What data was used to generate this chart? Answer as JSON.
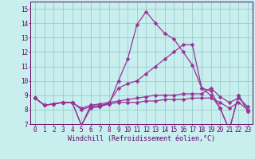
{
  "xlabel": "Windchill (Refroidissement éolien,°C)",
  "xlim": [
    -0.5,
    23.5
  ],
  "ylim": [
    7,
    15.5
  ],
  "xticks": [
    0,
    1,
    2,
    3,
    4,
    5,
    6,
    7,
    8,
    9,
    10,
    11,
    12,
    13,
    14,
    15,
    16,
    17,
    18,
    19,
    20,
    21,
    22,
    23
  ],
  "yticks": [
    7,
    8,
    9,
    10,
    11,
    12,
    13,
    14,
    15
  ],
  "background_color": "#c8eeee",
  "grid_color": "#99cccc",
  "line_color": "#993399",
  "lines": [
    [
      8.8,
      8.3,
      8.4,
      8.5,
      8.5,
      6.9,
      8.3,
      8.2,
      8.4,
      10.0,
      11.5,
      13.9,
      14.8,
      14.0,
      13.3,
      12.9,
      12.0,
      11.1,
      9.5,
      9.0,
      8.1,
      6.6,
      9.0,
      7.9
    ],
    [
      8.8,
      8.3,
      8.4,
      8.5,
      8.5,
      6.9,
      8.1,
      8.2,
      8.5,
      9.5,
      9.8,
      10.0,
      10.5,
      11.0,
      11.5,
      12.0,
      12.5,
      12.5,
      9.5,
      9.3,
      8.1,
      6.6,
      9.0,
      7.9
    ],
    [
      8.8,
      8.3,
      8.4,
      8.5,
      8.5,
      8.1,
      8.3,
      8.4,
      8.5,
      8.6,
      8.7,
      8.8,
      8.9,
      9.0,
      9.0,
      9.0,
      9.1,
      9.1,
      9.1,
      9.5,
      8.9,
      8.5,
      8.8,
      8.2
    ],
    [
      8.8,
      8.3,
      8.4,
      8.5,
      8.5,
      8.0,
      8.2,
      8.3,
      8.4,
      8.5,
      8.5,
      8.5,
      8.6,
      8.6,
      8.7,
      8.7,
      8.7,
      8.8,
      8.8,
      8.8,
      8.5,
      8.1,
      8.5,
      8.0
    ]
  ],
  "marker": "D",
  "markersize": 2.5,
  "linewidth": 0.9,
  "font_color": "#660066",
  "tick_fontsize": 5.5,
  "label_fontsize": 6.0
}
